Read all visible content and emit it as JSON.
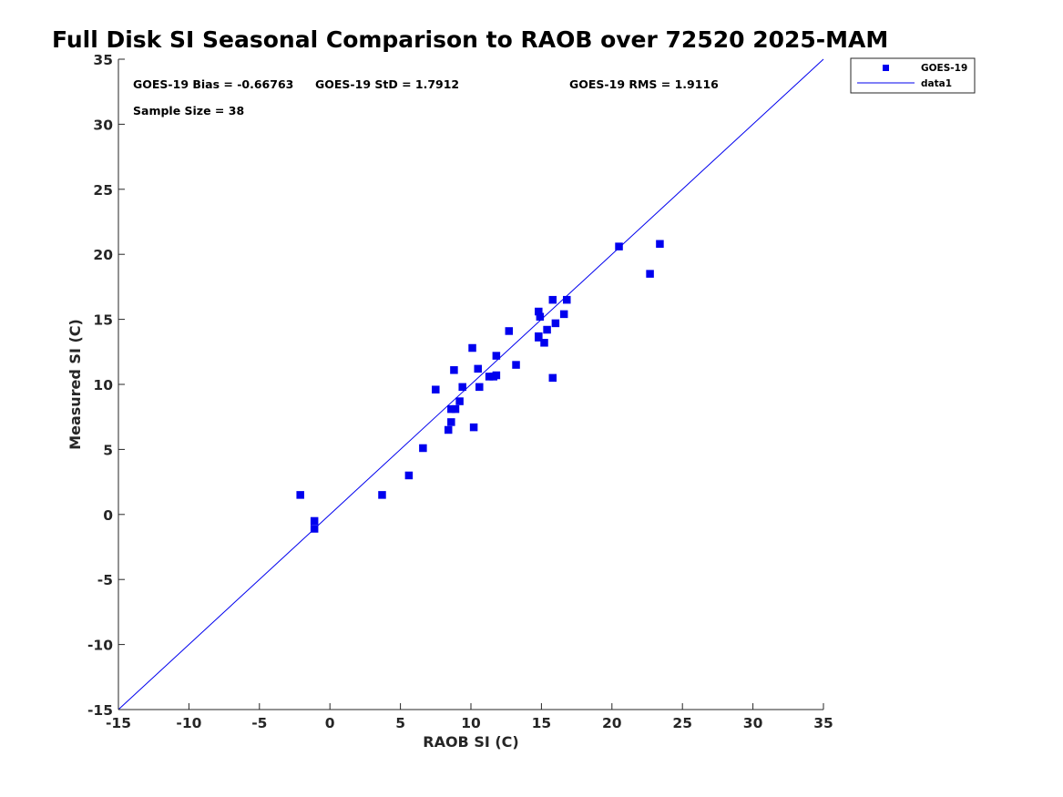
{
  "chart_data": {
    "type": "scatter",
    "title": "Full Disk SI Seasonal Comparison to RAOB over 72520 2025-MAM",
    "xlabel": "RAOB SI (C)",
    "ylabel": "Measured SI (C)",
    "xlim": [
      -15,
      35
    ],
    "ylim": [
      -15,
      35
    ],
    "xticks": [
      "-15",
      "-10",
      "-5",
      "0",
      "5",
      "10",
      "15",
      "20",
      "25",
      "30",
      "35"
    ],
    "yticks": [
      "35",
      "30",
      "25",
      "20",
      "15",
      "10",
      "5",
      "0",
      "-5",
      "-10",
      "-15"
    ],
    "grid": false,
    "legend_position": "top-right-outside",
    "annotations": {
      "bias": "GOES-19 Bias = -0.66763",
      "std": "GOES-19 StD = 1.7912",
      "rms": "GOES-19 RMS = 1.9116",
      "sample": "Sample Size = 38"
    },
    "series": [
      {
        "name": "GOES-19",
        "marker": "square",
        "color": "#0000ee",
        "points": [
          [
            -2.1,
            1.5
          ],
          [
            -1.1,
            -0.5
          ],
          [
            -1.1,
            -1.1
          ],
          [
            3.7,
            1.5
          ],
          [
            5.6,
            3.0
          ],
          [
            6.6,
            5.1
          ],
          [
            7.5,
            9.6
          ],
          [
            8.4,
            6.5
          ],
          [
            8.6,
            7.1
          ],
          [
            8.6,
            8.1
          ],
          [
            8.9,
            8.1
          ],
          [
            8.8,
            11.1
          ],
          [
            9.2,
            8.7
          ],
          [
            9.4,
            9.8
          ],
          [
            10.1,
            12.8
          ],
          [
            10.2,
            6.7
          ],
          [
            10.5,
            11.2
          ],
          [
            10.6,
            9.8
          ],
          [
            11.3,
            10.6
          ],
          [
            11.6,
            10.6
          ],
          [
            11.8,
            10.7
          ],
          [
            11.8,
            12.2
          ],
          [
            12.7,
            14.1
          ],
          [
            13.2,
            11.5
          ],
          [
            14.8,
            15.6
          ],
          [
            14.8,
            13.7
          ],
          [
            14.9,
            15.2
          ],
          [
            15.2,
            13.2
          ],
          [
            15.4,
            14.2
          ],
          [
            15.8,
            10.5
          ],
          [
            15.8,
            16.5
          ],
          [
            16.0,
            14.7
          ],
          [
            16.6,
            15.4
          ],
          [
            16.8,
            16.5
          ],
          [
            20.5,
            20.6
          ],
          [
            22.7,
            18.5
          ],
          [
            23.4,
            20.8
          ],
          [
            14.8,
            13.6
          ]
        ]
      },
      {
        "name": "data1",
        "type": "line",
        "color": "#0000ee",
        "points": [
          [
            -15,
            -15
          ],
          [
            35,
            35
          ]
        ]
      }
    ]
  }
}
